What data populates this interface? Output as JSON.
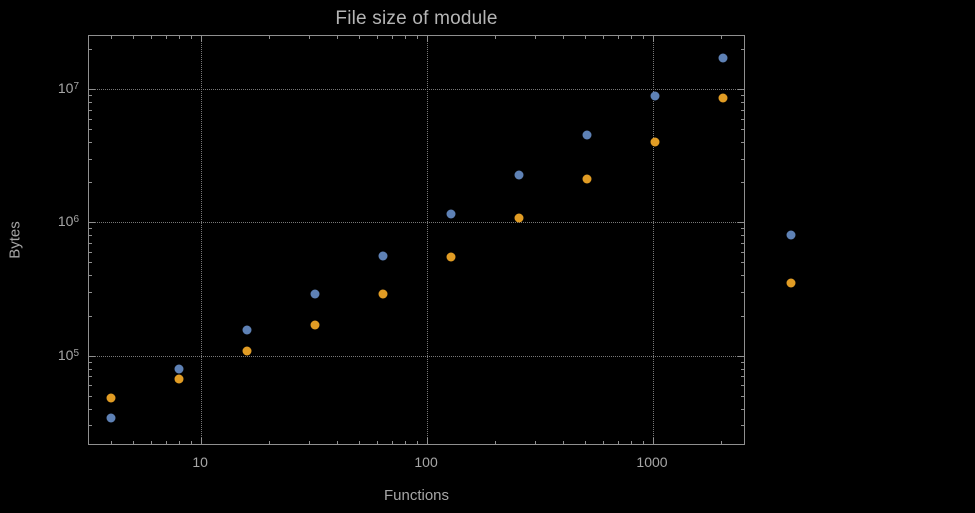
{
  "chart_data": {
    "type": "scatter",
    "title": "File size of module",
    "xlabel": "Functions",
    "ylabel": "Bytes",
    "x_scale": "log",
    "y_scale": "log",
    "xlim": [
      3.19,
      2580
    ],
    "ylim": [
      21000,
      25000000
    ],
    "x_major_ticks": [
      10,
      100,
      1000
    ],
    "x_tick_labels": [
      "10",
      "100",
      "1000"
    ],
    "y_major_ticks": [
      100000,
      1000000,
      10000000
    ],
    "y_tick_labels": [
      {
        "base": "10",
        "exp": "5"
      },
      {
        "base": "10",
        "exp": "6"
      },
      {
        "base": "10",
        "exp": "7"
      }
    ],
    "grid": "dotted",
    "legend": "none",
    "frame_color": "#8f8f8f",
    "grid_color": "#787878",
    "text_color": "#a6a6a6",
    "title_color": "#b5b5b5",
    "series": [
      {
        "name": "series-1",
        "color": "#5E81B5",
        "points": [
          [
            4,
            34000
          ],
          [
            8,
            80000
          ],
          [
            16,
            155000
          ],
          [
            32,
            290000
          ],
          [
            64,
            560000
          ],
          [
            128,
            1150000
          ],
          [
            256,
            2250000
          ],
          [
            512,
            4500000
          ],
          [
            1024,
            8800000
          ],
          [
            2048,
            17000000
          ],
          [
            4096,
            800000
          ]
        ]
      },
      {
        "name": "series-2",
        "color": "#E19C24",
        "points": [
          [
            4,
            48000
          ],
          [
            8,
            67000
          ],
          [
            16,
            108000
          ],
          [
            32,
            170000
          ],
          [
            64,
            290000
          ],
          [
            128,
            550000
          ],
          [
            256,
            1080000
          ],
          [
            512,
            2100000
          ],
          [
            1024,
            4000000
          ],
          [
            2048,
            8500000
          ],
          [
            4096,
            350000
          ]
        ]
      }
    ]
  }
}
